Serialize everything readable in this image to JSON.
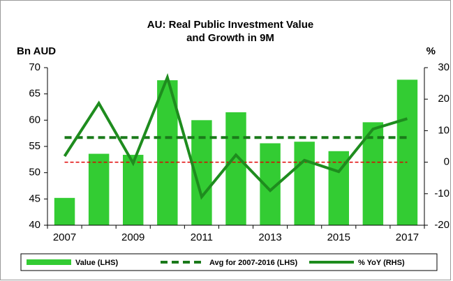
{
  "chart_data": {
    "type": "bar_line",
    "title": [
      "AU: Real Public Investment Value",
      "and Growth in 9M"
    ],
    "ylabel": "Bn AUD",
    "y2label": "%",
    "categories": [
      "2007",
      null,
      "2009",
      null,
      "2011",
      null,
      "2013",
      null,
      "2015",
      null,
      "2017"
    ],
    "series": [
      {
        "name": "Value (LHS)",
        "type": "bar",
        "color": "#33cc33",
        "values": [
          45.2,
          53.6,
          53.4,
          67.6,
          60.0,
          61.5,
          55.6,
          55.9,
          54.1,
          59.6,
          67.7
        ]
      },
      {
        "name": "Avg for 2007-2016 (LHS)",
        "type": "hline",
        "color": "#1a7a1a",
        "value": 56.7
      },
      {
        "name": "% YoY (RHS)",
        "type": "line",
        "axis": "y2",
        "color": "#1e8c1e",
        "values": [
          1.9,
          18.7,
          -0.3,
          26.9,
          -11.0,
          2.3,
          -9.0,
          0.6,
          -3.0,
          10.5,
          13.8
        ]
      }
    ],
    "ylim": [
      40,
      70
    ],
    "yticks": [
      40,
      45,
      50,
      55,
      60,
      65,
      70
    ],
    "y2lim": [
      -20,
      30
    ],
    "y2ticks": [
      -20,
      -10,
      0,
      10,
      20,
      30
    ],
    "zero_line_color": "#e00000"
  }
}
